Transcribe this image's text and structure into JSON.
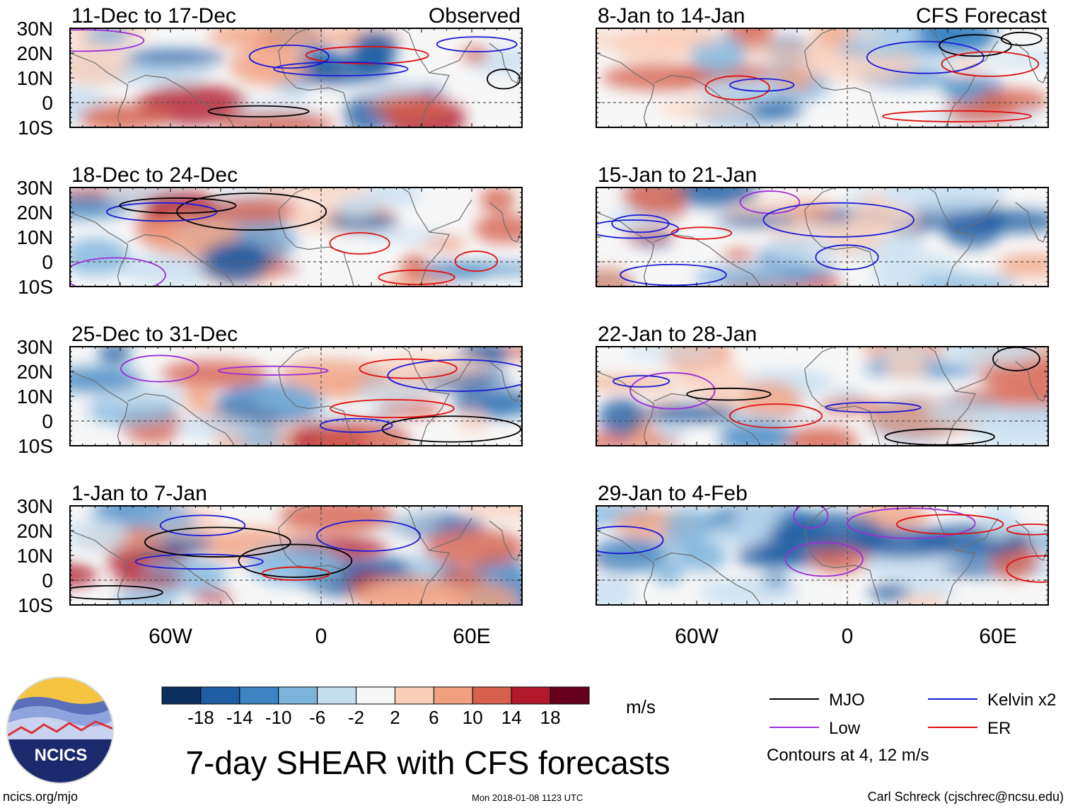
{
  "chart_data": {
    "type": "heatmap",
    "title": "7-day SHEAR with CFS forecasts",
    "unit": "m/s",
    "columns": [
      "Observed",
      "CFS Forecast"
    ],
    "x_axis": {
      "range_deg_lon": [
        -100,
        80
      ],
      "ticks": [
        "60W",
        "0",
        "60E"
      ],
      "tick_values": [
        -60,
        0,
        60
      ]
    },
    "y_axis": {
      "range_deg_lat": [
        -10,
        30
      ],
      "ticks": [
        "30N",
        "20N",
        "10N",
        "0",
        "10S"
      ],
      "tick_values": [
        30,
        20,
        10,
        0,
        -10
      ]
    },
    "colorbar": {
      "labels": [
        "-18",
        "-14",
        "-10",
        "-6",
        "-2",
        "2",
        "6",
        "10",
        "14",
        "18"
      ],
      "colors": [
        "#0d2f5e",
        "#1f5ea3",
        "#3c85c2",
        "#7db4dc",
        "#c5def0",
        "#f7f7f7",
        "#fad0bb",
        "#f0a07f",
        "#d6604d",
        "#b2182b",
        "#67001f"
      ]
    },
    "panels": [
      {
        "period": "11-Dec to 17-Dec",
        "source": "Observed",
        "header": "Observed"
      },
      {
        "period": "18-Dec to 24-Dec",
        "source": "Observed",
        "header": ""
      },
      {
        "period": "25-Dec to 31-Dec",
        "source": "Observed",
        "header": ""
      },
      {
        "period": "1-Jan to 7-Jan",
        "source": "Observed",
        "header": ""
      },
      {
        "period": "8-Jan to 14-Jan",
        "source": "CFS Forecast",
        "header": "CFS Forecast"
      },
      {
        "period": "15-Jan to 21-Jan",
        "source": "CFS Forecast",
        "header": ""
      },
      {
        "period": "22-Jan to 28-Jan",
        "source": "CFS Forecast",
        "header": ""
      },
      {
        "period": "29-Jan to 4-Feb",
        "source": "CFS Forecast",
        "header": ""
      }
    ],
    "contour_note": "Contours at 4, 12 m/s",
    "legend": [
      {
        "label": "MJO",
        "color": "#000000"
      },
      {
        "label": "Kelvin x2",
        "color": "#1a1ad6"
      },
      {
        "label": "Low",
        "color": "#9a2fd6"
      },
      {
        "label": "ER",
        "color": "#e01010"
      }
    ]
  },
  "logo": {
    "text": "NCICS"
  },
  "footer": {
    "url": "ncics.org/mjo",
    "timestamp": "Mon 2018-01-08 1123 UTC",
    "credit": "Carl Schreck (cjschrec@ncsu.edu)"
  }
}
